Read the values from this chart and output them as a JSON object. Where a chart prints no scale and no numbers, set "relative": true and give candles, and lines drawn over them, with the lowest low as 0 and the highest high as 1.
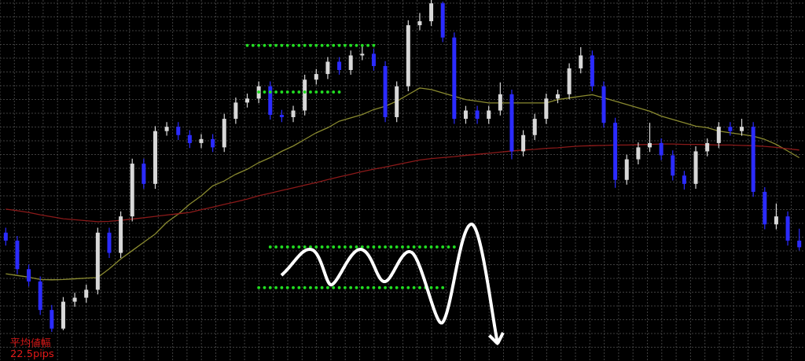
{
  "chart_data": {
    "type": "candlestick",
    "relative": true,
    "grid": true,
    "categories": [
      null,
      null,
      null,
      null,
      null,
      null,
      null,
      null,
      null,
      null,
      null,
      null,
      null,
      null,
      null,
      null,
      null,
      null,
      null,
      null,
      null,
      null,
      null,
      null,
      null,
      null,
      null,
      null,
      null,
      null,
      null,
      null,
      null,
      null,
      null,
      null,
      null,
      null,
      null,
      null,
      null,
      null,
      null,
      null,
      null,
      null,
      null,
      null,
      null,
      null,
      null,
      null,
      null,
      null,
      null,
      null,
      null,
      null,
      null,
      null,
      null,
      null,
      null,
      null,
      null,
      null,
      null,
      null,
      null,
      null
    ],
    "ohlc": [
      [
        0.299,
        0.314,
        0.26,
        0.275
      ],
      [
        0.275,
        0.289,
        0.174,
        0.189
      ],
      [
        0.189,
        0.203,
        0.137,
        0.152
      ],
      [
        0.152,
        0.167,
        0.051,
        0.066
      ],
      [
        0.066,
        0.081,
        0,
        0.01
      ],
      [
        0.01,
        0.105,
        0.005,
        0.091
      ],
      [
        0.091,
        0.118,
        0.076,
        0.103
      ],
      [
        0.103,
        0.142,
        0.088,
        0.127
      ],
      [
        0.127,
        0.314,
        0.113,
        0.299
      ],
      [
        0.299,
        0.314,
        0.223,
        0.238
      ],
      [
        0.238,
        0.363,
        0.223,
        0.348
      ],
      [
        0.348,
        0.522,
        0.333,
        0.507
      ],
      [
        0.507,
        0.522,
        0.431,
        0.446
      ],
      [
        0.446,
        0.62,
        0.431,
        0.605
      ],
      [
        0.605,
        0.632,
        0.591,
        0.618
      ],
      [
        0.618,
        0.632,
        0.578,
        0.593
      ],
      [
        0.593,
        0.608,
        0.554,
        0.569
      ],
      [
        0.569,
        0.596,
        0.554,
        0.581
      ],
      [
        0.581,
        0.596,
        0.542,
        0.556
      ],
      [
        0.556,
        0.657,
        0.542,
        0.642
      ],
      [
        0.642,
        0.706,
        0.627,
        0.691
      ],
      [
        0.691,
        0.718,
        0.676,
        0.703
      ],
      [
        0.703,
        0.755,
        0.689,
        0.74
      ],
      [
        0.74,
        0.755,
        0.64,
        0.654
      ],
      [
        0.654,
        0.669,
        0.632,
        0.647
      ],
      [
        0.647,
        0.681,
        0.632,
        0.667
      ],
      [
        0.667,
        0.775,
        0.652,
        0.76
      ],
      [
        0.76,
        0.792,
        0.745,
        0.777
      ],
      [
        0.777,
        0.828,
        0.762,
        0.814
      ],
      [
        0.814,
        0.828,
        0.775,
        0.789
      ],
      [
        0.789,
        0.848,
        0.775,
        0.833
      ],
      [
        0.833,
        0.863,
        0.819,
        0.838
      ],
      [
        0.838,
        0.853,
        0.787,
        0.801
      ],
      [
        0.801,
        0.816,
        0.632,
        0.647
      ],
      [
        0.647,
        0.755,
        0.632,
        0.74
      ],
      [
        0.74,
        0.939,
        0.725,
        0.924
      ],
      [
        0.924,
        0.961,
        0.909,
        0.936
      ],
      [
        0.936,
        1,
        0.922,
        0.99
      ],
      [
        0.99,
        0.995,
        0.873,
        0.887
      ],
      [
        0.887,
        0.902,
        0.627,
        0.642
      ],
      [
        0.642,
        0.681,
        0.627,
        0.667
      ],
      [
        0.667,
        0.681,
        0.627,
        0.642
      ],
      [
        0.642,
        0.681,
        0.627,
        0.667
      ],
      [
        0.667,
        0.752,
        0.652,
        0.716
      ],
      [
        0.716,
        0.73,
        0.52,
        0.544
      ],
      [
        0.544,
        0.608,
        0.529,
        0.593
      ],
      [
        0.593,
        0.657,
        0.578,
        0.642
      ],
      [
        0.642,
        0.718,
        0.627,
        0.703
      ],
      [
        0.703,
        0.73,
        0.689,
        0.716
      ],
      [
        0.716,
        0.809,
        0.701,
        0.794
      ],
      [
        0.794,
        0.858,
        0.779,
        0.833
      ],
      [
        0.833,
        0.848,
        0.725,
        0.74
      ],
      [
        0.74,
        0.755,
        0.615,
        0.63
      ],
      [
        0.63,
        0.645,
        0.434,
        0.458
      ],
      [
        0.458,
        0.534,
        0.444,
        0.52
      ],
      [
        0.52,
        0.571,
        0.505,
        0.556
      ],
      [
        0.556,
        0.63,
        0.542,
        0.569
      ],
      [
        0.569,
        0.583,
        0.517,
        0.532
      ],
      [
        0.532,
        0.547,
        0.456,
        0.471
      ],
      [
        0.471,
        0.485,
        0.429,
        0.446
      ],
      [
        0.446,
        0.559,
        0.431,
        0.544
      ],
      [
        0.544,
        0.583,
        0.529,
        0.569
      ],
      [
        0.569,
        0.632,
        0.554,
        0.618
      ],
      [
        0.618,
        0.632,
        0.591,
        0.605
      ],
      [
        0.605,
        0.642,
        0.591,
        0.618
      ],
      [
        0.618,
        0.632,
        0.407,
        0.422
      ],
      [
        0.422,
        0.436,
        0.309,
        0.324
      ],
      [
        0.324,
        0.387,
        0.309,
        0.348
      ],
      [
        0.348,
        0.363,
        0.26,
        0.275
      ],
      [
        0.275,
        0.311,
        0.245,
        0.255
      ]
    ],
    "series": [
      {
        "type": "line",
        "color": "#8a8a30",
        "values": [
          0.175,
          0.17,
          0.165,
          0.158,
          0.157,
          0.158,
          0.16,
          0.162,
          0.164,
          0.19,
          0.22,
          0.245,
          0.27,
          0.295,
          0.33,
          0.355,
          0.385,
          0.41,
          0.44,
          0.455,
          0.475,
          0.49,
          0.51,
          0.525,
          0.544,
          0.56,
          0.58,
          0.6,
          0.615,
          0.635,
          0.645,
          0.655,
          0.67,
          0.68,
          0.695,
          0.715,
          0.735,
          0.73,
          0.72,
          0.71,
          0.7,
          0.695,
          0.69,
          0.69,
          0.69,
          0.69,
          0.69,
          0.69,
          0.7,
          0.705,
          0.71,
          0.715,
          0.705,
          0.695,
          0.685,
          0.675,
          0.665,
          0.65,
          0.64,
          0.63,
          0.62,
          0.615,
          0.605,
          0.6,
          0.595,
          0.59,
          0.58,
          0.565,
          0.545,
          0.525
        ]
      },
      {
        "type": "line",
        "color": "#8b1a1a",
        "values": [
          0.37,
          0.365,
          0.36,
          0.353,
          0.347,
          0.341,
          0.338,
          0.335,
          0.332,
          0.333,
          0.336,
          0.34,
          0.344,
          0.348,
          0.352,
          0.356,
          0.36,
          0.368,
          0.376,
          0.384,
          0.392,
          0.4,
          0.41,
          0.418,
          0.426,
          0.434,
          0.442,
          0.45,
          0.459,
          0.467,
          0.475,
          0.483,
          0.49,
          0.497,
          0.504,
          0.511,
          0.518,
          0.522,
          0.525,
          0.528,
          0.532,
          0.535,
          0.538,
          0.542,
          0.545,
          0.548,
          0.55,
          0.553,
          0.555,
          0.558,
          0.56,
          0.561,
          0.562,
          0.563,
          0.563,
          0.564,
          0.565,
          0.566,
          0.566,
          0.565,
          0.565,
          0.564,
          0.563,
          0.563,
          0.562,
          0.561,
          0.559,
          0.556,
          0.552,
          0.548
        ]
      },
      {
        "type": "line",
        "color": "#22dd22",
        "line_style": "dotted",
        "values": [
          null,
          null,
          null,
          null,
          null,
          null,
          null,
          null,
          null,
          null,
          null,
          null,
          null,
          null,
          null,
          null,
          null,
          null,
          null,
          null,
          null,
          0.863,
          0.863,
          0.863,
          0.863,
          0.863,
          0.863,
          0.863,
          0.863,
          0.863,
          0.863,
          0.863,
          0.863,
          null,
          null,
          null,
          null,
          null,
          null,
          null,
          null,
          null,
          null,
          null,
          null,
          null,
          null,
          null,
          null,
          null,
          null,
          null,
          null,
          null,
          null,
          null,
          null,
          null,
          null,
          null,
          null,
          null,
          null,
          null,
          null,
          null,
          null,
          null,
          null,
          null
        ]
      },
      {
        "type": "line",
        "color": "#22dd22",
        "line_style": "dotted",
        "values": [
          null,
          null,
          null,
          null,
          null,
          null,
          null,
          null,
          null,
          null,
          null,
          null,
          null,
          null,
          null,
          null,
          null,
          null,
          null,
          null,
          null,
          null,
          0.723,
          0.723,
          0.723,
          0.723,
          0.723,
          0.723,
          0.723,
          0.723,
          null,
          null,
          null,
          null,
          null,
          null,
          null,
          null,
          null,
          null,
          null,
          null,
          null,
          null,
          null,
          null,
          null,
          null,
          null,
          null,
          null,
          null,
          null,
          null,
          null,
          null,
          null,
          null,
          null,
          null,
          null,
          null,
          null,
          null,
          null,
          null,
          null,
          null,
          null,
          null
        ]
      },
      {
        "type": "line",
        "color": "#22dd22",
        "line_style": "dotted",
        "values": [
          null,
          null,
          null,
          null,
          null,
          null,
          null,
          null,
          null,
          null,
          null,
          null,
          null,
          null,
          null,
          null,
          null,
          null,
          null,
          null,
          null,
          null,
          null,
          0.256,
          0.256,
          0.256,
          0.256,
          0.256,
          0.256,
          0.256,
          0.256,
          0.256,
          0.256,
          0.256,
          0.256,
          0.256,
          0.256,
          0.256,
          0.256,
          0.256,
          null,
          null,
          null,
          null,
          null,
          null,
          null,
          null,
          null,
          null,
          null,
          null,
          null,
          null,
          null,
          null,
          null,
          null,
          null,
          null,
          null,
          null,
          null,
          null,
          null,
          null,
          null,
          null,
          null,
          null
        ]
      },
      {
        "type": "line",
        "color": "#22dd22",
        "line_style": "dotted",
        "values": [
          null,
          null,
          null,
          null,
          null,
          null,
          null,
          null,
          null,
          null,
          null,
          null,
          null,
          null,
          null,
          null,
          null,
          null,
          null,
          null,
          null,
          null,
          0.133,
          0.133,
          0.133,
          0.133,
          0.133,
          0.133,
          0.133,
          0.133,
          0.133,
          0.133,
          0.133,
          0.133,
          0.133,
          0.133,
          0.133,
          0.133,
          0.133,
          null,
          null,
          null,
          null,
          null,
          null,
          null,
          null,
          null,
          null,
          null,
          null,
          null,
          null,
          null,
          null,
          null,
          null,
          null,
          null,
          null,
          null,
          null,
          null,
          null,
          null,
          null,
          null,
          null,
          null,
          null
        ]
      }
    ],
    "annotations": [
      "平均値幅",
      "22.5pips"
    ]
  }
}
